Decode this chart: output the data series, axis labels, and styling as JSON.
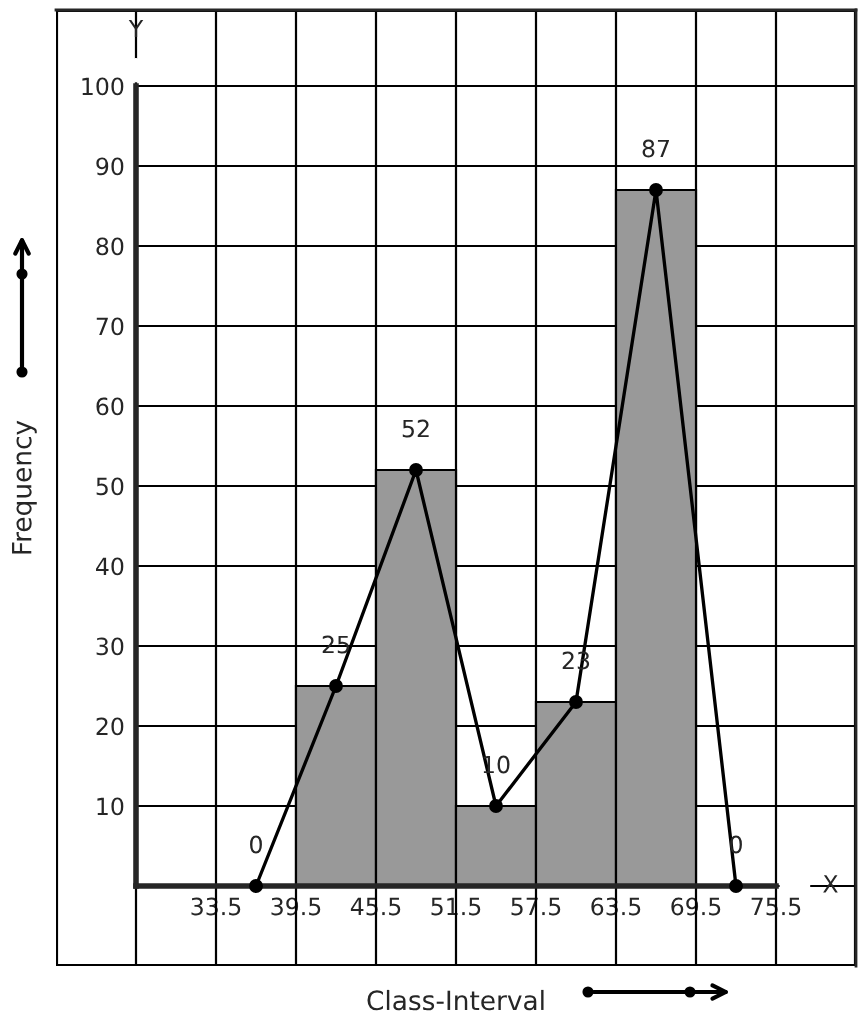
{
  "chart_data": {
    "type": "histogram",
    "xlabel": "Class-Interval",
    "ylabel": "Frequency",
    "annotations": [
      "X",
      "Y"
    ],
    "series": [
      {
        "bins": [
          39.5,
          45.5,
          51.5,
          57.5,
          63.5,
          69.5
        ],
        "values": [
          25,
          52,
          10,
          23,
          87
        ],
        "color": "#999999"
      },
      {
        "type": "line",
        "x": [
          36.5,
          42.5,
          48.5,
          54.5,
          60.5,
          66.5,
          72.5
        ],
        "values": [
          0,
          25,
          52,
          10,
          23,
          87,
          0
        ],
        "value_labels": [
          "0",
          "25",
          "52",
          "10",
          "23",
          "87",
          "0"
        ],
        "color": "#000000"
      }
    ],
    "marker": "circle",
    "line_style": "solid",
    "xlim": [
      21.5,
      81.5
    ],
    "ylim": [
      -10,
      109.5
    ],
    "xticks": [
      33.5,
      39.5,
      45.5,
      51.5,
      57.5,
      63.5,
      69.5,
      75.5
    ],
    "yticks": [
      10,
      20,
      30,
      40,
      50,
      60,
      70,
      80,
      90,
      100
    ],
    "grid": true
  }
}
